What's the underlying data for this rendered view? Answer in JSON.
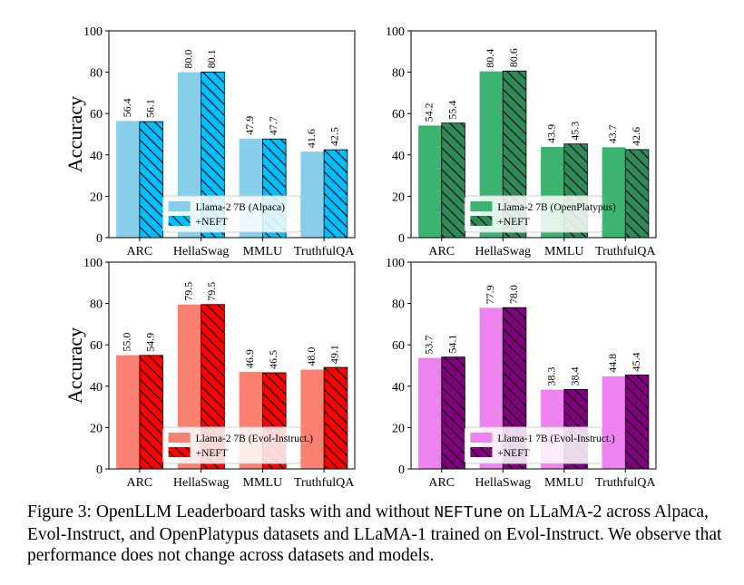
{
  "chart_data": [
    {
      "type": "bar",
      "categories": [
        "ARC",
        "HellaSwag",
        "MMLU",
        "TruthfulQA"
      ],
      "ylabel": "Accuracy",
      "ylim": [
        0,
        100
      ],
      "yticks": [
        "0",
        "20",
        "40",
        "60",
        "80",
        "100"
      ],
      "legend_position": "lower-center",
      "series": [
        {
          "name": "Llama-2 7B (Alpaca)",
          "values": [
            56.4,
            80.0,
            47.9,
            41.6
          ],
          "labels": [
            "56.4",
            "80.0",
            "47.9",
            "41.6"
          ],
          "color": "#87CEEB",
          "hatch": false
        },
        {
          "name": "+NEFT",
          "values": [
            56.1,
            80.1,
            47.7,
            42.5
          ],
          "labels": [
            "56.1",
            "80.1",
            "47.7",
            "42.5"
          ],
          "color": "#00BFFF",
          "hatch": true
        }
      ]
    },
    {
      "type": "bar",
      "categories": [
        "ARC",
        "HellaSwag",
        "MMLU",
        "TruthfulQA"
      ],
      "ylabel": "",
      "ylim": [
        0,
        100
      ],
      "yticks": [
        "0",
        "20",
        "40",
        "60",
        "80",
        "100"
      ],
      "legend_position": "lower-center",
      "series": [
        {
          "name": "Llama-2 7B (OpenPlatypus)",
          "values": [
            54.2,
            80.4,
            43.9,
            43.7
          ],
          "labels": [
            "54.2",
            "80.4",
            "43.9",
            "43.7"
          ],
          "color": "#3CB371",
          "hatch": false
        },
        {
          "name": "+NEFT",
          "values": [
            55.4,
            80.6,
            45.3,
            42.6
          ],
          "labels": [
            "55.4",
            "80.6",
            "45.3",
            "42.6"
          ],
          "color": "#2E8B57",
          "hatch": true
        }
      ]
    },
    {
      "type": "bar",
      "categories": [
        "ARC",
        "HellaSwag",
        "MMLU",
        "TruthfulQA"
      ],
      "ylabel": "Accuracy",
      "ylim": [
        0,
        100
      ],
      "yticks": [
        "0",
        "20",
        "40",
        "60",
        "80",
        "100"
      ],
      "legend_position": "lower-center",
      "series": [
        {
          "name": "Llama-2 7B (Evol-Instruct.)",
          "values": [
            55.0,
            79.5,
            46.9,
            48.0
          ],
          "labels": [
            "55.0",
            "79.5",
            "46.9",
            "48.0"
          ],
          "color": "#FA8072",
          "hatch": false
        },
        {
          "name": "+NEFT",
          "values": [
            54.9,
            79.5,
            46.5,
            49.1
          ],
          "labels": [
            "54.9",
            "79.5",
            "46.5",
            "49.1"
          ],
          "color": "#FF0000",
          "hatch": true
        }
      ]
    },
    {
      "type": "bar",
      "categories": [
        "ARC",
        "HellaSwag",
        "MMLU",
        "TruthfulQA"
      ],
      "ylabel": "",
      "ylim": [
        0,
        100
      ],
      "yticks": [
        "0",
        "20",
        "40",
        "60",
        "80",
        "100"
      ],
      "legend_position": "lower-center",
      "series": [
        {
          "name": "Llama-1 7B (Evol-Instruct.)",
          "values": [
            53.7,
            77.9,
            38.3,
            44.8
          ],
          "labels": [
            "53.7",
            "77.9",
            "38.3",
            "44.8"
          ],
          "color": "#EE82EE",
          "hatch": false
        },
        {
          "name": "+NEFT",
          "values": [
            54.1,
            78.0,
            38.4,
            45.4
          ],
          "labels": [
            "54.1",
            "78.0",
            "38.4",
            "45.4"
          ],
          "color": "#800080",
          "hatch": true
        }
      ]
    }
  ],
  "caption": {
    "prefix": "Figure 3: OpenLLM Leaderboard tasks with and without ",
    "code": "NEFTune",
    "suffix": " on LLaMA-2 across Alpaca, Evol-Instruct, and OpenPlatypus datasets and LLaMA-1 trained on Evol-Instruct. We observe that performance does not change across datasets and models."
  }
}
